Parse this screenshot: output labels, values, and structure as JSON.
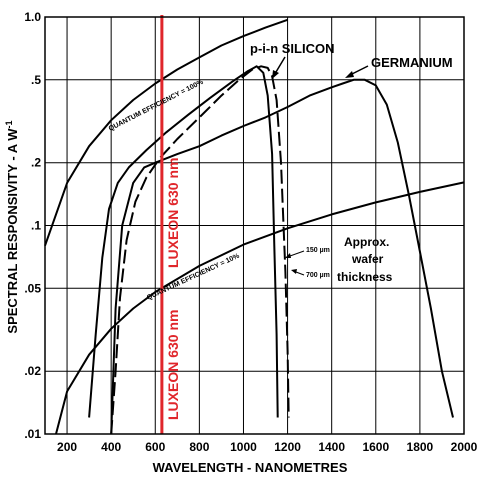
{
  "chart_data": {
    "type": "line",
    "xlabel": "WAVELENGTH - NANOMETRES",
    "ylabel_main": "SPECTRAL RESPONSIVITY - A W",
    "ylabel_sup": "-1",
    "xlim": [
      100,
      2000
    ],
    "ylim": [
      0.01,
      1.0
    ],
    "y_scale": "log",
    "grid": true,
    "x_ticks": [
      200,
      400,
      600,
      800,
      1000,
      1200,
      1400,
      1600,
      1800,
      2000
    ],
    "x_tick_labels": [
      "200",
      "400",
      "600",
      "800",
      "1000",
      "1200",
      "1400",
      "1600",
      "1800",
      "2000"
    ],
    "y_ticks": [
      0.01,
      0.02,
      0.05,
      0.1,
      0.2,
      0.5,
      1.0
    ],
    "y_tick_labels": [
      ".01",
      ".02",
      ".05",
      ".1",
      ".2",
      ".5",
      "1.0"
    ],
    "series": [
      {
        "key": "qe100",
        "style": "solid",
        "x": [
          100,
          200,
          300,
          400,
          500,
          600,
          700,
          800,
          900,
          1000,
          1100,
          1200
        ],
        "y": [
          0.08,
          0.16,
          0.24,
          0.32,
          0.4,
          0.48,
          0.56,
          0.64,
          0.73,
          0.81,
          0.89,
          0.97
        ]
      },
      {
        "key": "qe10",
        "style": "solid",
        "x": [
          150,
          200,
          300,
          400,
          500,
          600,
          800,
          1000,
          1200,
          1400,
          1600,
          1800,
          2000
        ],
        "y": [
          0.01,
          0.016,
          0.024,
          0.032,
          0.04,
          0.048,
          0.064,
          0.081,
          0.097,
          0.113,
          0.129,
          0.145,
          0.161
        ]
      },
      {
        "key": "silicon_150um",
        "style": "solid",
        "x": [
          300,
          330,
          360,
          390,
          430,
          480,
          560,
          650,
          750,
          850,
          950,
          1020,
          1060,
          1090,
          1110,
          1130,
          1140,
          1150,
          1155
        ],
        "y": [
          0.012,
          0.03,
          0.07,
          0.12,
          0.16,
          0.19,
          0.23,
          0.28,
          0.34,
          0.41,
          0.49,
          0.55,
          0.58,
          0.54,
          0.42,
          0.22,
          0.08,
          0.03,
          0.012
        ]
      },
      {
        "key": "silicon_700um",
        "style": "dashed",
        "x": [
          400,
          420,
          440,
          470,
          510,
          560,
          620,
          700,
          800,
          900,
          980,
          1040,
          1080,
          1110,
          1130,
          1150,
          1170,
          1190,
          1200,
          1205
        ],
        "y": [
          0.01,
          0.02,
          0.045,
          0.085,
          0.13,
          0.17,
          0.21,
          0.26,
          0.33,
          0.42,
          0.5,
          0.56,
          0.58,
          0.57,
          0.52,
          0.4,
          0.2,
          0.06,
          0.025,
          0.012
        ]
      },
      {
        "key": "germanium",
        "style": "solid",
        "x": [
          400,
          420,
          450,
          500,
          550,
          600,
          700,
          800,
          900,
          1000,
          1100,
          1200,
          1300,
          1400,
          1450,
          1500,
          1550,
          1600,
          1650,
          1700,
          1750,
          1800,
          1850,
          1900,
          1950
        ],
        "y": [
          0.01,
          0.04,
          0.1,
          0.16,
          0.19,
          0.2,
          0.22,
          0.24,
          0.27,
          0.3,
          0.33,
          0.37,
          0.42,
          0.46,
          0.48,
          0.5,
          0.5,
          0.47,
          0.38,
          0.25,
          0.14,
          0.075,
          0.04,
          0.02,
          0.012
        ]
      }
    ],
    "marker_line": {
      "x": 630,
      "color": "#e0262b",
      "label": "LUXEON 630 nm"
    },
    "annotations": {
      "germanium": "GERMANIUM",
      "silicon": "p-i-n SILICON",
      "qe100": "QUANTUM EFFICIENCY = 100%",
      "qe10": "QUANTUM EFFICIENCY = 10%",
      "approx1": "Approx.",
      "approx2": "wafer",
      "approx3": "thickness",
      "t150": "150 µm",
      "t700": "700 µm"
    }
  }
}
